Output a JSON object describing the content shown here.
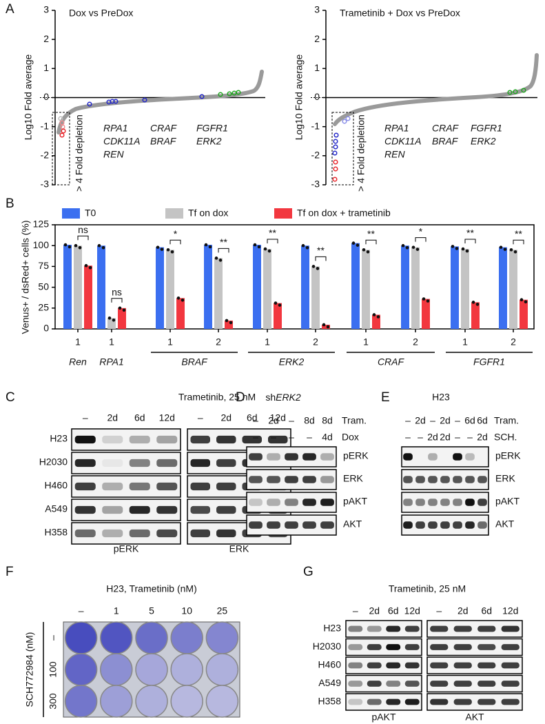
{
  "panel_labels": [
    "A",
    "B",
    "C",
    "D",
    "E",
    "F",
    "G"
  ],
  "panel_a": [
    {
      "title": "Dox vs PreDox",
      "y_label": "Log10 Fold average",
      "yticks": [
        3,
        2,
        1,
        0,
        -1,
        -2,
        -3
      ],
      "genes": [
        {
          "text": "RPA1",
          "color": "#e8262b"
        },
        {
          "text": "CDK11A",
          "color": "#e8262b"
        },
        {
          "text": "REN",
          "color": "#1fa51f"
        },
        {
          "text": "CRAF",
          "color": "#2327c8"
        },
        {
          "text": "BRAF",
          "color": "#2327c8"
        },
        {
          "text": "FGFR1",
          "color": "#2327c8"
        },
        {
          "text": "ERK2",
          "color": "#2327c8"
        }
      ],
      "annotation": "> 4 Fold depletion"
    },
    {
      "title": "Trametinib + Dox vs PreDox",
      "y_label": "Log10 Fold average",
      "yticks": [
        3,
        2,
        1,
        0,
        -1,
        -2,
        -3
      ],
      "genes": [
        {
          "text": "RPA1",
          "color": "#e8262b"
        },
        {
          "text": "CDK11A",
          "color": "#e8262b"
        },
        {
          "text": "REN",
          "color": "#1fa51f"
        },
        {
          "text": "CRAF",
          "color": "#2327c8"
        },
        {
          "text": "BRAF",
          "color": "#2327c8"
        },
        {
          "text": "FGFR1",
          "color": "#2327c8"
        },
        {
          "text": "ERK2",
          "color": "#2327c8"
        }
      ],
      "annotation": "> 4 Fold depletion"
    }
  ],
  "chart_data": {
    "type": "bar",
    "y_label": "Venus+ / dsRed+ cells (%)",
    "ylim": [
      0,
      125
    ],
    "yticks": [
      0,
      25,
      50,
      75,
      100,
      125
    ],
    "groups": [
      {
        "label": "Ren",
        "categories": [
          "1"
        ]
      },
      {
        "label": "RPA1",
        "categories": [
          "1"
        ]
      },
      {
        "label": "BRAF",
        "categories": [
          "1",
          "2"
        ]
      },
      {
        "label": "ERK2",
        "categories": [
          "1",
          "2"
        ]
      },
      {
        "label": "CRAF",
        "categories": [
          "1",
          "2"
        ]
      },
      {
        "label": "FGFR1",
        "categories": [
          "1",
          "2"
        ]
      }
    ],
    "series": [
      {
        "name": "T0",
        "color": "#3b6ff0",
        "values": [
          101,
          100,
          98,
          101,
          101,
          100,
          103,
          100,
          99,
          98
        ]
      },
      {
        "name": "Tf on dox",
        "color": "#c4c4c4",
        "values": [
          100,
          13,
          95,
          85,
          96,
          75,
          95,
          98,
          96,
          95
        ]
      },
      {
        "name": "Tf on dox + trametinib",
        "color": "#f2373f",
        "values": [
          76,
          25,
          37,
          10,
          31,
          5,
          17,
          36,
          32,
          35
        ]
      }
    ],
    "annotations": [
      "ns",
      "ns",
      "*",
      "**",
      "**",
      "**",
      "**",
      "*",
      "**",
      "**"
    ]
  },
  "panel_c": {
    "title": "Trametinib, 25 nM",
    "columns": [
      "–",
      "2d",
      "6d",
      "12d"
    ],
    "rows": [
      "H23",
      "H2030",
      "H460",
      "A549",
      "H358"
    ],
    "blots": [
      "pERK",
      "ERK"
    ]
  },
  "panel_d": {
    "title_prefix": "sh",
    "title_gene": "ERK2",
    "conditions": [
      {
        "label": "Tram.",
        "values": [
          "–",
          "2d",
          "–",
          "8d",
          "8d"
        ]
      },
      {
        "label": "Dox",
        "values": [
          "–",
          "–",
          "–",
          "–",
          "4d"
        ]
      }
    ],
    "blots": [
      "pERK",
      "ERK",
      "pAKT",
      "AKT"
    ]
  },
  "panel_e": {
    "title": "H23",
    "conditions": [
      {
        "label": "Tram.",
        "values": [
          "–",
          "2d",
          "–",
          "2d",
          "–",
          "6d",
          "6d"
        ]
      },
      {
        "label": "SCH.",
        "values": [
          "–",
          "–",
          "2d",
          "2d",
          "–",
          "–",
          "2d"
        ]
      }
    ],
    "blots": [
      "pERK",
      "ERK",
      "pAKT",
      "AKT"
    ]
  },
  "panel_f": {
    "title": "H23, Trametinib (nM)",
    "columns": [
      "–",
      "1",
      "5",
      "10",
      "25"
    ],
    "y_label": "SCH772984 (nM)",
    "rows": [
      "–",
      "100",
      "300"
    ]
  },
  "panel_g": {
    "title": "Trametinib, 25 nM",
    "columns": [
      "–",
      "2d",
      "6d",
      "12d"
    ],
    "rows": [
      "H23",
      "H2030",
      "H460",
      "A549",
      "H358"
    ],
    "blots": [
      "pAKT",
      "AKT"
    ]
  }
}
